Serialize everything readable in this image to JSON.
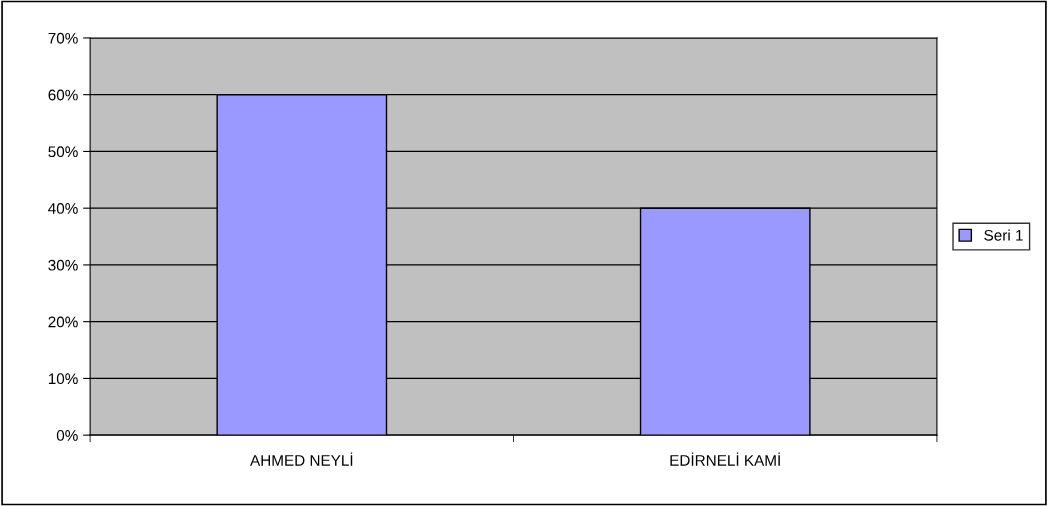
{
  "chart_data": {
    "type": "bar",
    "categories": [
      "AHMED NEYLİ",
      "EDİRNELİ KAMİ"
    ],
    "series": [
      {
        "name": "Seri 1",
        "color": "#9999ff",
        "values": [
          60,
          40
        ]
      }
    ],
    "ylim": [
      0,
      70
    ],
    "yticks": [
      {
        "value": 0,
        "label": "0%"
      },
      {
        "value": 10,
        "label": "10%"
      },
      {
        "value": 20,
        "label": "20%"
      },
      {
        "value": 30,
        "label": "30%"
      },
      {
        "value": 40,
        "label": "40%"
      },
      {
        "value": 50,
        "label": "50%"
      },
      {
        "value": 60,
        "label": "60%"
      },
      {
        "value": 70,
        "label": "70%"
      }
    ],
    "grid": "y",
    "legend": "right"
  }
}
